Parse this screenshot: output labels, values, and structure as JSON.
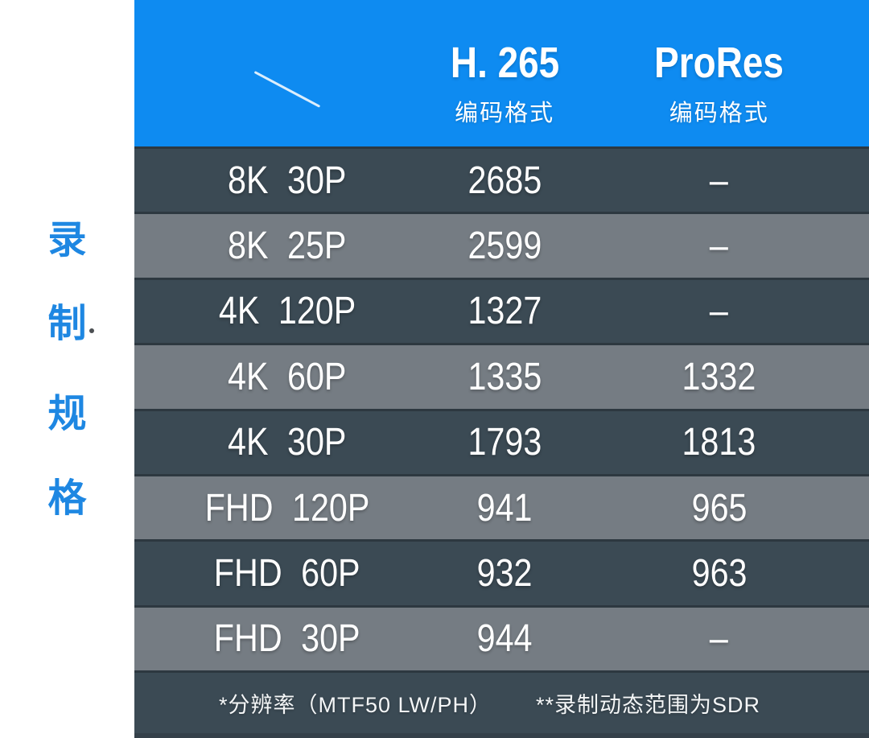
{
  "sidebar": {
    "chars": [
      "录",
      "制",
      "规",
      "格"
    ],
    "dot": "."
  },
  "header": {
    "columns": [
      {
        "title": "H. 265",
        "subtitle": "编码格式"
      },
      {
        "title": "ProRes",
        "subtitle": "编码格式"
      }
    ]
  },
  "rows": [
    {
      "label": "8K 30P",
      "h265": "2685",
      "prores": "–"
    },
    {
      "label": "8K 25P",
      "h265": "2599",
      "prores": "–"
    },
    {
      "label": "4K 120P",
      "h265": "1327",
      "prores": "–"
    },
    {
      "label": "4K 60P",
      "h265": "1335",
      "prores": "1332"
    },
    {
      "label": "4K 30P",
      "h265": "1793",
      "prores": "1813"
    },
    {
      "label": "FHD 120P",
      "h265": "941",
      "prores": "965"
    },
    {
      "label": "FHD 60P",
      "h265": "932",
      "prores": "963"
    },
    {
      "label": "FHD 30P",
      "h265": "944",
      "prores": "–"
    }
  ],
  "footnotes": [
    "*分辨率（MTF50 LW/PH）",
    "**录制动态范围为SDR"
  ],
  "colors": {
    "header_blue": "#0e8bf1",
    "row_dark": "#3b4a54",
    "row_light": "#757c83",
    "separator": "#2d3840",
    "sidebar_text_blue": "#1e87e2",
    "text_white": "#ffffff"
  },
  "chart_data": {
    "type": "table",
    "title": "录制规格",
    "columns": [
      "规格",
      "H.265 编码格式",
      "ProRes 编码格式"
    ],
    "rows": [
      [
        "8K 30P",
        2685,
        null
      ],
      [
        "8K 25P",
        2599,
        null
      ],
      [
        "4K 120P",
        1327,
        null
      ],
      [
        "4K 60P",
        1335,
        1332
      ],
      [
        "4K 30P",
        1793,
        1813
      ],
      [
        "FHD 120P",
        941,
        965
      ],
      [
        "FHD 60P",
        932,
        963
      ],
      [
        "FHD 30P",
        944,
        null
      ]
    ],
    "null_display": "–",
    "notes": [
      "*分辨率（MTF50 LW/PH）",
      "**录制动态范围为SDR"
    ]
  }
}
